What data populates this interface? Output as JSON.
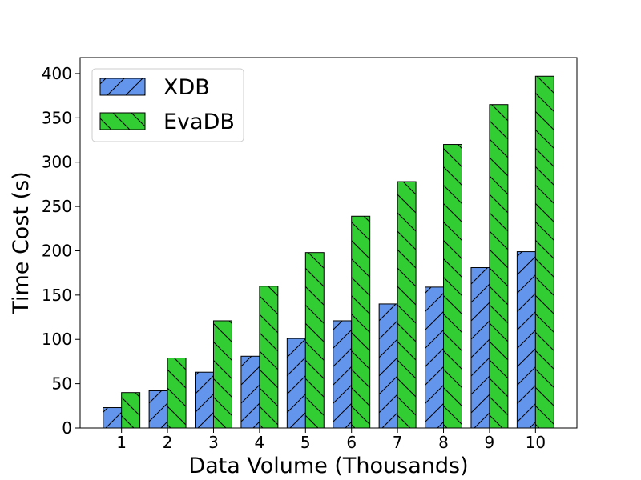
{
  "chart_data": {
    "type": "bar",
    "title": "",
    "xlabel": "Data Volume (Thousands)",
    "ylabel": "Time Cost (s)",
    "categories": [
      "1",
      "2",
      "3",
      "4",
      "5",
      "6",
      "7",
      "8",
      "9",
      "10"
    ],
    "ylim": [
      0,
      418
    ],
    "yticks": [
      0,
      50,
      100,
      150,
      200,
      250,
      300,
      350,
      400
    ],
    "grid": false,
    "legend_position": "top-left",
    "series": [
      {
        "name": "XDB",
        "color": "#6495ED",
        "hatch": "forward-diagonal",
        "values": [
          23,
          42,
          63,
          81,
          101,
          121,
          140,
          159,
          181,
          199
        ]
      },
      {
        "name": "EvaDB",
        "color": "#32CD32",
        "hatch": "back-diagonal",
        "values": [
          40,
          79,
          121,
          160,
          198,
          239,
          278,
          320,
          365,
          397
        ]
      }
    ]
  }
}
